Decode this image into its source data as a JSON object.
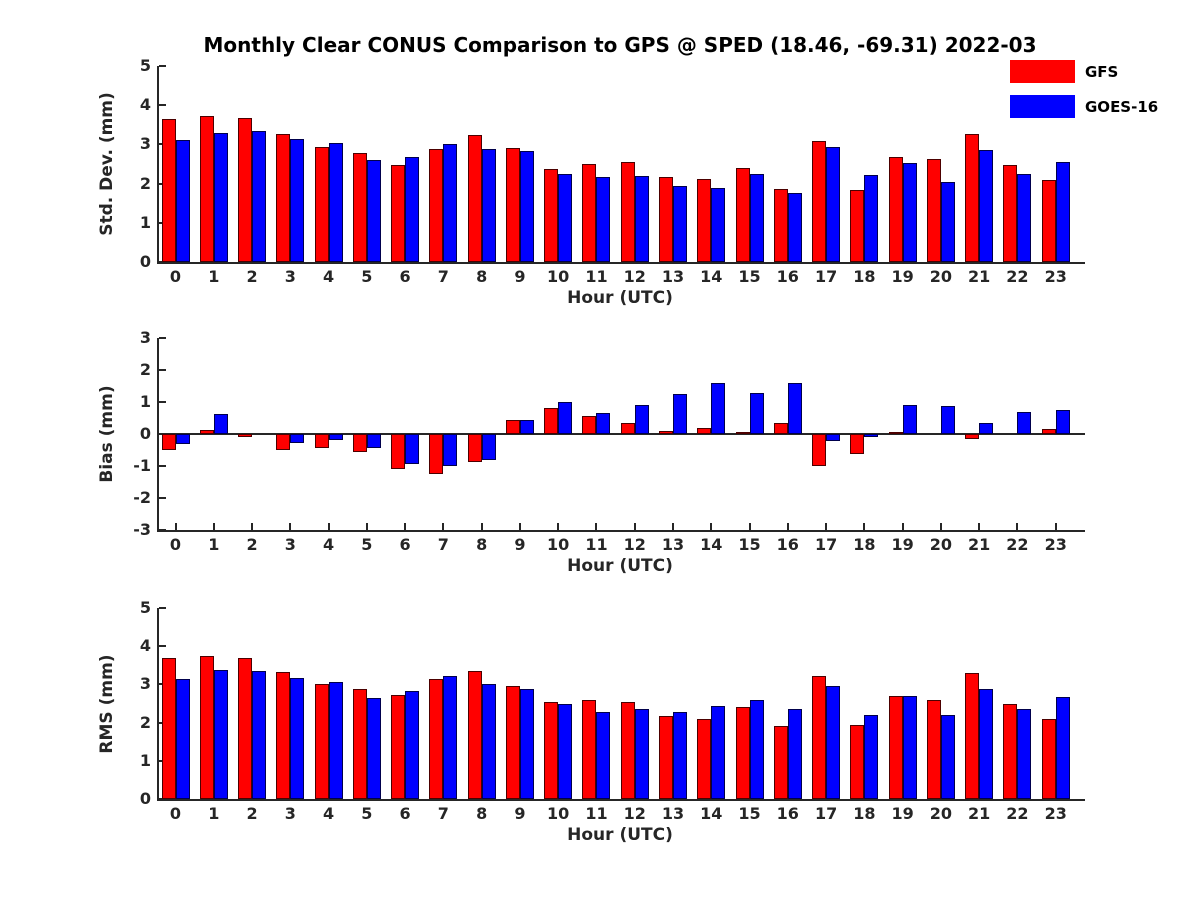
{
  "title": "Monthly Clear CONUS Comparison to GPS @ SPED (18.46, -69.31) 2022-03",
  "legend": [
    {
      "label": "GFS",
      "color": "#ff0000"
    },
    {
      "label": "GOES-16",
      "color": "#0000ff"
    }
  ],
  "chart_data": [
    {
      "id": "std-dev",
      "type": "bar",
      "xlabel": "Hour (UTC)",
      "ylabel": "Std. Dev. (mm)",
      "ylim": [
        0,
        5
      ],
      "yticks": [
        0,
        1,
        2,
        3,
        4,
        5
      ],
      "grid": false,
      "legend_position": "top-right",
      "categories": [
        "0",
        "1",
        "2",
        "3",
        "4",
        "5",
        "6",
        "7",
        "8",
        "9",
        "10",
        "11",
        "12",
        "13",
        "14",
        "15",
        "16",
        "17",
        "18",
        "19",
        "20",
        "21",
        "22",
        "23"
      ],
      "series": [
        {
          "name": "GFS",
          "color": "#ff0000",
          "values": [
            3.65,
            3.72,
            3.68,
            3.27,
            2.93,
            2.78,
            2.47,
            2.88,
            3.24,
            2.9,
            2.38,
            2.5,
            2.55,
            2.16,
            2.12,
            2.4,
            1.87,
            3.08,
            1.84,
            2.69,
            2.62,
            3.27,
            2.47,
            2.09
          ]
        },
        {
          "name": "GOES-16",
          "color": "#0000ff",
          "values": [
            3.1,
            3.3,
            3.35,
            3.14,
            3.03,
            2.6,
            2.67,
            3.02,
            2.88,
            2.82,
            2.24,
            2.18,
            2.19,
            1.94,
            1.88,
            2.25,
            1.76,
            2.94,
            2.23,
            2.53,
            2.05,
            2.86,
            2.25,
            2.54
          ]
        }
      ]
    },
    {
      "id": "bias",
      "type": "bar",
      "xlabel": "Hour (UTC)",
      "ylabel": "Bias (mm)",
      "ylim": [
        -3,
        3
      ],
      "yticks": [
        -3,
        -2,
        -1,
        0,
        1,
        2,
        3
      ],
      "grid": false,
      "categories": [
        "0",
        "1",
        "2",
        "3",
        "4",
        "5",
        "6",
        "7",
        "8",
        "9",
        "10",
        "11",
        "12",
        "13",
        "14",
        "15",
        "16",
        "17",
        "18",
        "19",
        "20",
        "21",
        "22",
        "23"
      ],
      "series": [
        {
          "name": "GFS",
          "color": "#ff0000",
          "values": [
            -0.5,
            0.12,
            -0.08,
            -0.5,
            -0.45,
            -0.57,
            -1.1,
            -1.25,
            -0.88,
            0.45,
            0.8,
            0.55,
            0.35,
            0.1,
            0.2,
            0.05,
            0.35,
            -1.0,
            -0.62,
            0.05,
            0.02,
            -0.16,
            0.0,
            0.15
          ]
        },
        {
          "name": "GOES-16",
          "color": "#0000ff",
          "values": [
            -0.3,
            0.62,
            0.0,
            -0.28,
            -0.2,
            -0.45,
            -0.95,
            -1.0,
            -0.8,
            0.45,
            1.0,
            0.65,
            0.9,
            1.25,
            1.6,
            1.27,
            1.58,
            -0.23,
            -0.08,
            0.92,
            0.87,
            0.33,
            0.7,
            0.75
          ]
        }
      ]
    },
    {
      "id": "rms",
      "type": "bar",
      "xlabel": "Hour (UTC)",
      "ylabel": "RMS (mm)",
      "ylim": [
        0,
        5
      ],
      "yticks": [
        0,
        1,
        2,
        3,
        4,
        5
      ],
      "grid": false,
      "categories": [
        "0",
        "1",
        "2",
        "3",
        "4",
        "5",
        "6",
        "7",
        "8",
        "9",
        "10",
        "11",
        "12",
        "13",
        "14",
        "15",
        "16",
        "17",
        "18",
        "19",
        "20",
        "21",
        "22",
        "23"
      ],
      "series": [
        {
          "name": "GFS",
          "color": "#ff0000",
          "values": [
            3.7,
            3.75,
            3.7,
            3.33,
            3.0,
            2.87,
            2.72,
            3.15,
            3.35,
            2.95,
            2.55,
            2.58,
            2.55,
            2.18,
            2.1,
            2.4,
            1.9,
            3.22,
            1.95,
            2.7,
            2.6,
            3.3,
            2.5,
            2.1
          ]
        },
        {
          "name": "GOES-16",
          "color": "#0000ff",
          "values": [
            3.15,
            3.38,
            3.35,
            3.18,
            3.07,
            2.65,
            2.83,
            3.22,
            3.0,
            2.88,
            2.48,
            2.28,
            2.35,
            2.27,
            2.44,
            2.58,
            2.35,
            2.95,
            2.2,
            2.7,
            2.2,
            2.87,
            2.35,
            2.67
          ]
        }
      ]
    }
  ]
}
